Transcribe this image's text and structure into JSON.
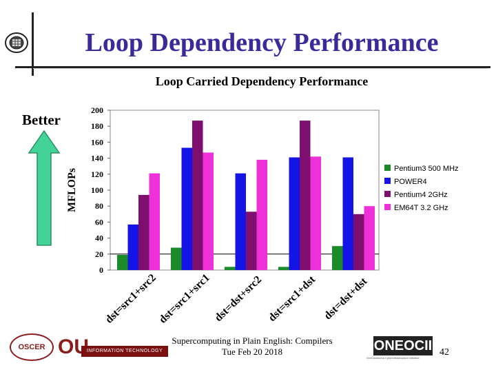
{
  "slide": {
    "title": "Loop Dependency Performance",
    "better_label": "Better",
    "footer_line1": "Supercomputing in Plain English: Compilers",
    "footer_line2": "Tue Feb 20 2018",
    "page_number": "42",
    "logos": {
      "oscer": "OSCER",
      "ou": "OU",
      "information_technology": "INFORMATION TECHNOLOGY",
      "oneocii": "ONEOCII",
      "oneocii_tagline": "OneOklahoma Cyberinfrastructure Initiative"
    }
  },
  "colors": {
    "title": "#3b2a9a",
    "arrow_fill": "#43d399",
    "arrow_stroke": "#2a8f60"
  },
  "chart_data": {
    "type": "bar",
    "title": "Loop Carried Dependency Performance",
    "ylabel": "MFLOPs",
    "xlabel": "",
    "ylim": [
      0,
      200
    ],
    "yticks": [
      0,
      20,
      40,
      60,
      80,
      100,
      120,
      140,
      160,
      180,
      200
    ],
    "categories": [
      "dst=src1+src2",
      "dst=src1+src1",
      "dst=dst+src2",
      "dst=src1+dst",
      "dst=dst+dst"
    ],
    "series": [
      {
        "name": "Pentium3 500 MHz",
        "color": "#1d8a2a",
        "values": [
          19,
          28,
          4,
          4,
          30
        ]
      },
      {
        "name": "POWER4",
        "color": "#1414e6",
        "values": [
          57,
          153,
          121,
          141,
          141
        ]
      },
      {
        "name": "Pentium4 2GHz",
        "color": "#7e0f6e",
        "values": [
          94,
          187,
          73,
          187,
          70
        ]
      },
      {
        "name": "EM64T 3.2 GHz",
        "color": "#ee30d8",
        "values": [
          121,
          147,
          138,
          142,
          80
        ]
      }
    ],
    "grid": false,
    "legend": "right"
  }
}
